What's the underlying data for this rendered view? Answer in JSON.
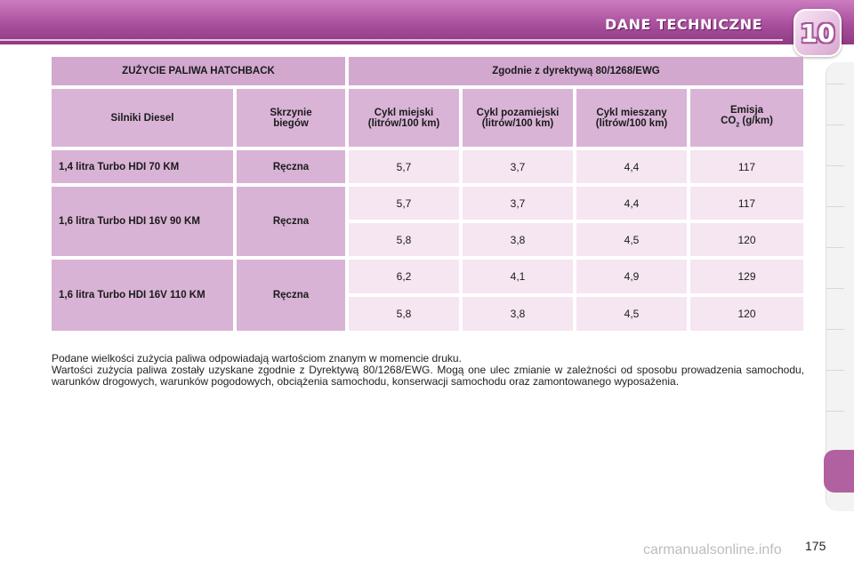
{
  "header": {
    "section_title": "DANE TECHNICZNE",
    "chapter_number": "10"
  },
  "table": {
    "title_left": "ZUŻYCIE PALIWA HATCHBACK",
    "title_right": "Zgodnie z dyrektywą 80/1268/EWG",
    "columns": {
      "engine": "Silniki Diesel",
      "gearbox": "Skrzynie biegów",
      "urban": "Cykl miejski (litrów/100 km)",
      "extra_urban": "Cykl pozamiejski (litrów/100 km)",
      "combined": "Cykl mieszany (litrów/100 km)",
      "emission_prefix": "Emisja",
      "emission_co": "CO",
      "emission_sub": "2",
      "emission_unit": " (g/km)"
    },
    "groups": [
      {
        "engine": "1,4 litra Turbo HDI 70 KM",
        "gearbox": "Ręczna",
        "rows": [
          {
            "urban": "5,7",
            "extra_urban": "3,7",
            "combined": "4,4",
            "co2": "117"
          }
        ]
      },
      {
        "engine": "1,6 litra Turbo HDI 16V 90 KM",
        "gearbox": "Ręczna",
        "rows": [
          {
            "urban": "5,7",
            "extra_urban": "3,7",
            "combined": "4,4",
            "co2": "117"
          },
          {
            "urban": "5,8",
            "extra_urban": "3,8",
            "combined": "4,5",
            "co2": "120"
          }
        ]
      },
      {
        "engine": "1,6 litra Turbo HDI 16V 110 KM",
        "gearbox": "Ręczna",
        "rows": [
          {
            "urban": "6,2",
            "extra_urban": "4,1",
            "combined": "4,9",
            "co2": "129"
          },
          {
            "urban": "5,8",
            "extra_urban": "3,8",
            "combined": "4,5",
            "co2": "120"
          }
        ]
      }
    ]
  },
  "notes": {
    "line1": "Podane wielkości zużycia paliwa odpowiadają wartościom znanym w momencie druku.",
    "line2": "Wartości zużycia paliwa zostały uzyskane zgodnie z Dyrektywą 80/1268/EWG. Mogą one ulec zmianie w zależności od sposobu prowadzenia samochodu, warunków drogowych, warunków pogodowych, obciążenia samochodu, konserwacji samochodu oraz zamontowanego wyposażenia."
  },
  "footer": {
    "page_number": "175",
    "watermark": "carmanualsonline.info"
  },
  "colors": {
    "header_band": "#a94f9c",
    "table_header": "#d2a8cf",
    "table_value": "#f5e6f2",
    "active_tab": "#b1619f"
  }
}
